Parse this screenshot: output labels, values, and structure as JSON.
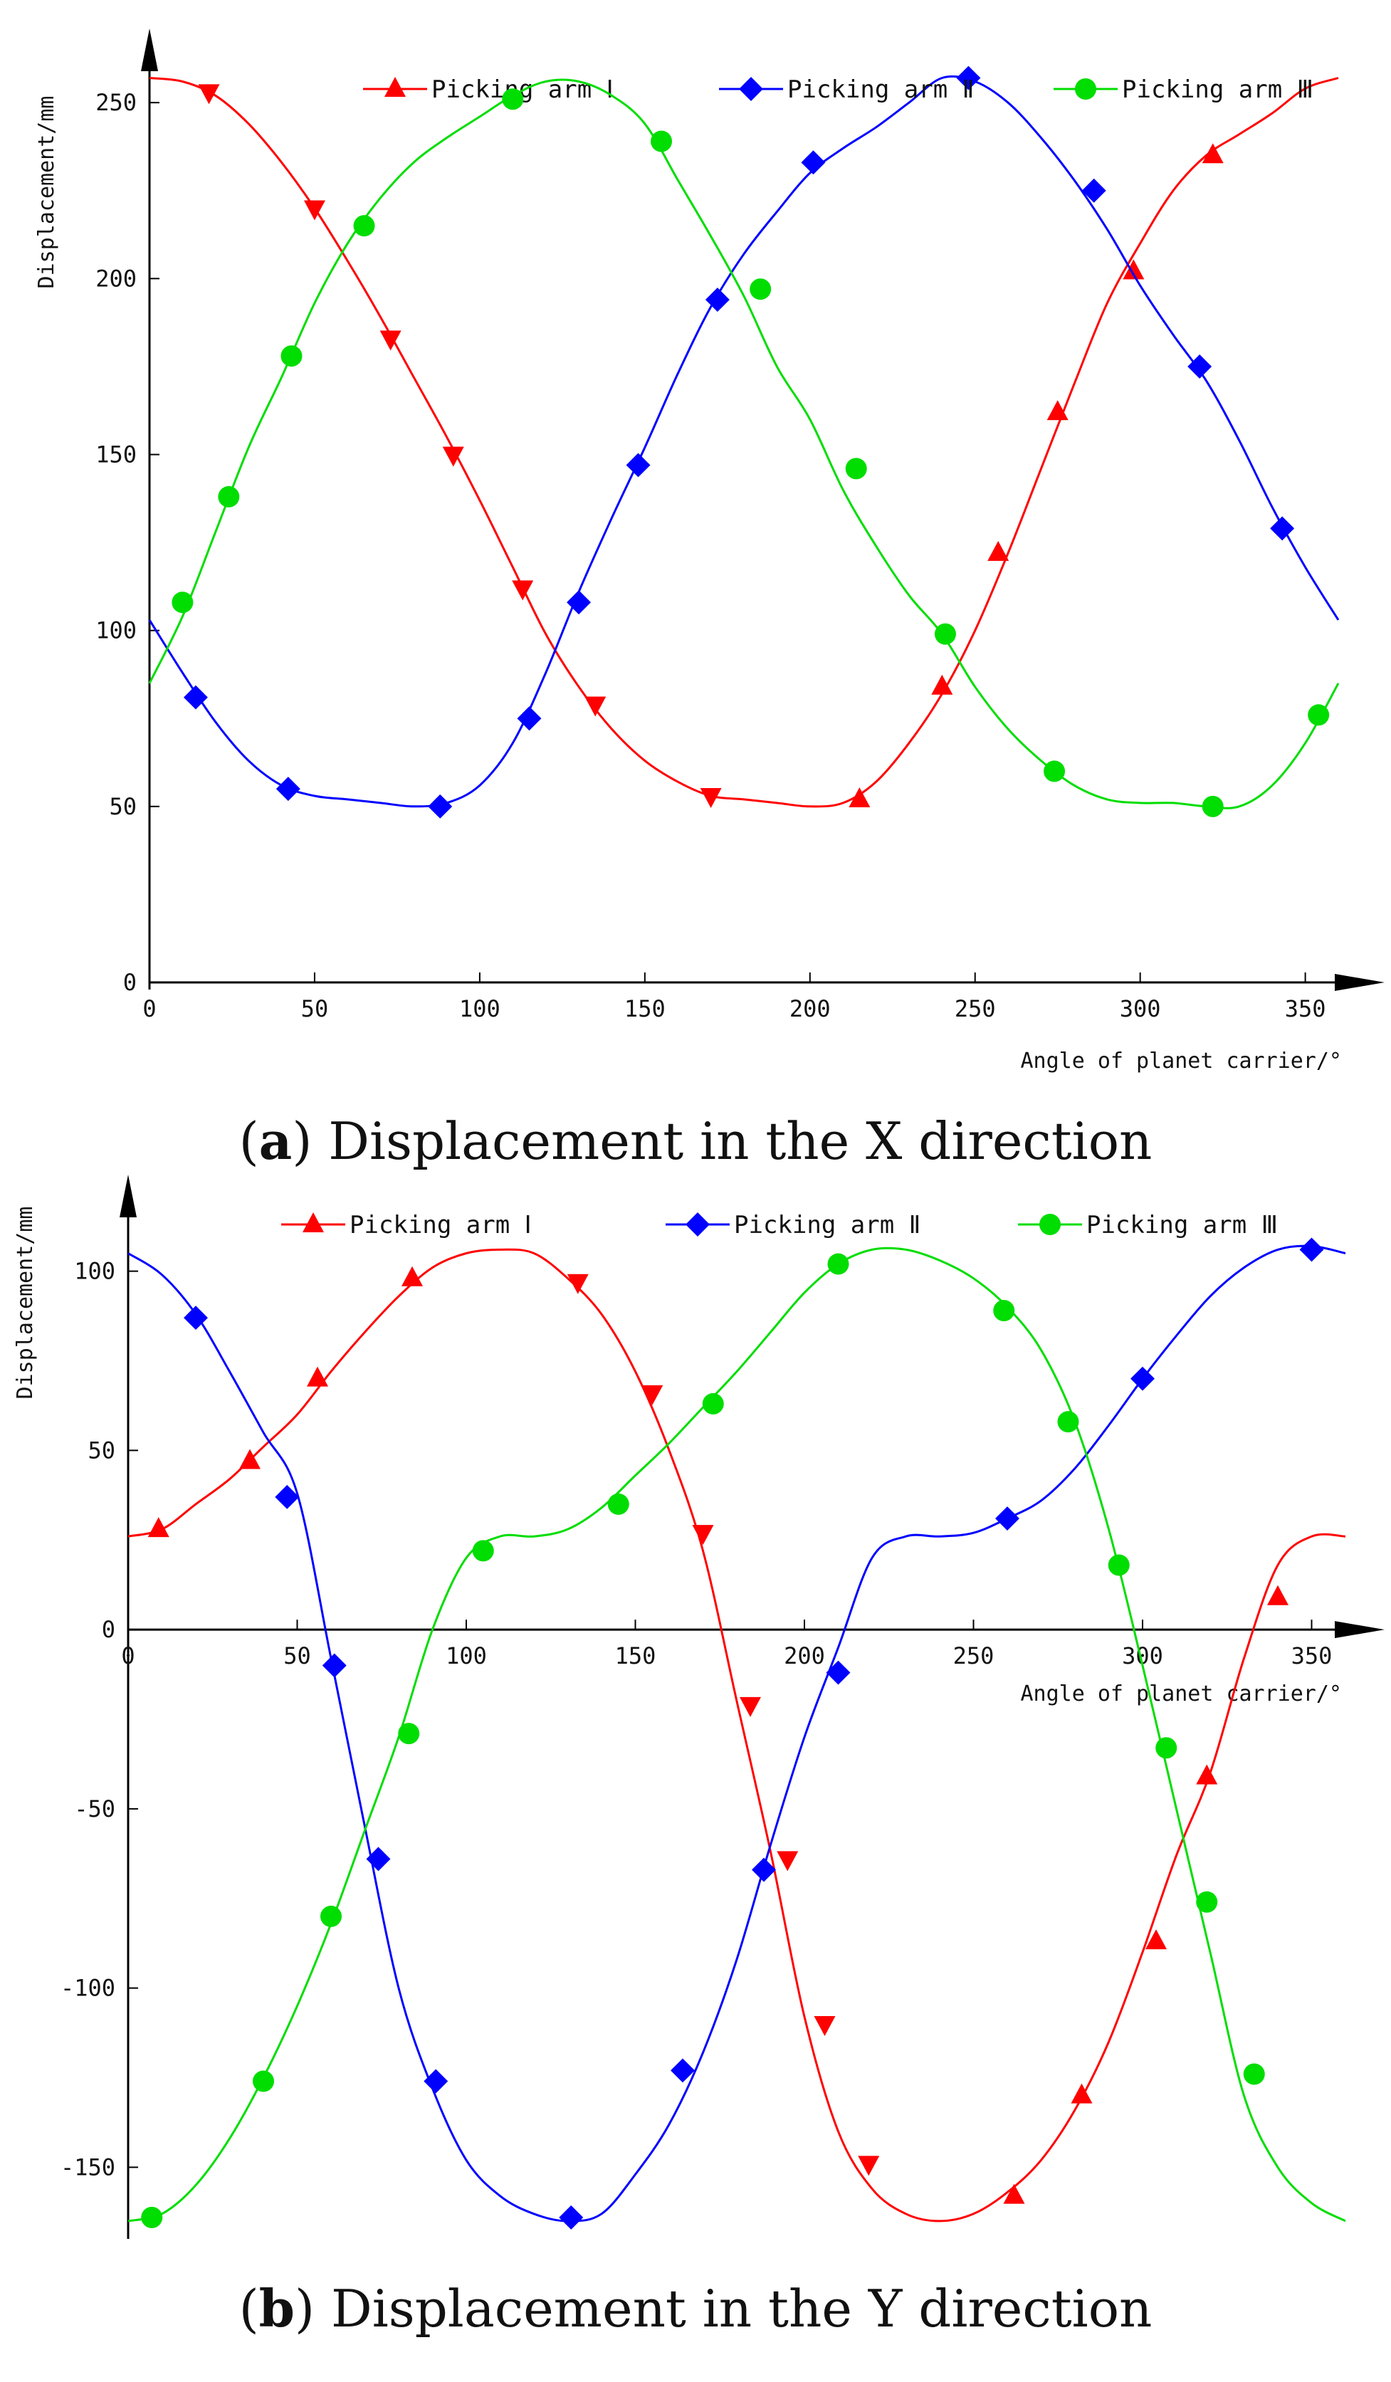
{
  "chart_data": [
    {
      "type": "line",
      "panel": "a",
      "caption_letter": "a",
      "caption_text": "Displacement in the X direction",
      "xlabel": "Angle of planet carrier/°",
      "ylabel": "Displacement/mm",
      "xlim": [
        0,
        360
      ],
      "ylim": [
        0,
        265
      ],
      "xticks": [
        0,
        50,
        100,
        150,
        200,
        250,
        300,
        350
      ],
      "yticks": [
        0,
        50,
        100,
        150,
        200,
        250
      ],
      "grid": false,
      "legend_position": "top",
      "series": [
        {
          "name": "Picking arm Ⅰ",
          "color": "#ff0000",
          "marker": "triangle",
          "x": [
            0,
            10,
            20,
            30,
            40,
            50,
            60,
            70,
            80,
            90,
            100,
            110,
            120,
            130,
            140,
            150,
            160,
            170,
            180,
            190,
            200,
            210,
            220,
            230,
            240,
            250,
            260,
            270,
            280,
            290,
            300,
            310,
            320,
            330,
            340,
            350,
            360
          ],
          "values": [
            257,
            256,
            252,
            244,
            233,
            220,
            205,
            189,
            172,
            155,
            137,
            118,
            99,
            84,
            72,
            63,
            57,
            53,
            52,
            51,
            50,
            51,
            57,
            68,
            82,
            100,
            122,
            146,
            170,
            193,
            210,
            225,
            235,
            241,
            247,
            254,
            257
          ],
          "marker_points": [
            [
              18,
              253
            ],
            [
              50,
              220
            ],
            [
              73,
              183
            ],
            [
              92,
              150
            ],
            [
              113,
              112
            ],
            [
              135,
              79
            ],
            [
              170,
              53
            ],
            [
              215,
              52
            ],
            [
              240,
              84
            ],
            [
              257,
              122
            ],
            [
              275,
              162
            ],
            [
              298,
              202
            ],
            [
              322,
              235
            ]
          ]
        },
        {
          "name": "Picking arm Ⅱ",
          "color": "#0000ff",
          "marker": "diamond",
          "x": [
            0,
            10,
            20,
            30,
            40,
            50,
            60,
            70,
            80,
            90,
            100,
            110,
            120,
            130,
            140,
            150,
            160,
            170,
            180,
            190,
            200,
            210,
            220,
            230,
            240,
            250,
            260,
            270,
            280,
            290,
            300,
            310,
            320,
            330,
            340,
            350,
            360
          ],
          "values": [
            103,
            88,
            74,
            63,
            56,
            53,
            52,
            51,
            50,
            51,
            56,
            68,
            88,
            111,
            132,
            152,
            173,
            192,
            207,
            219,
            230,
            237,
            243,
            250,
            257,
            256,
            250,
            240,
            228,
            214,
            198,
            184,
            171,
            154,
            135,
            118,
            103
          ],
          "marker_points": [
            [
              14,
              81
            ],
            [
              42,
              55
            ],
            [
              88,
              50
            ],
            [
              115,
              75
            ],
            [
              130,
              108
            ],
            [
              148,
              147
            ],
            [
              172,
              194
            ],
            [
              201,
              233
            ],
            [
              248,
              257
            ],
            [
              286,
              225
            ],
            [
              318,
              175
            ],
            [
              343,
              129
            ]
          ]
        },
        {
          "name": "Picking arm Ⅲ",
          "color": "#00dd00",
          "marker": "circle",
          "x": [
            0,
            10,
            20,
            30,
            40,
            50,
            60,
            70,
            80,
            90,
            100,
            110,
            120,
            130,
            140,
            150,
            160,
            170,
            180,
            190,
            200,
            210,
            220,
            230,
            240,
            250,
            260,
            270,
            280,
            290,
            300,
            310,
            320,
            330,
            340,
            350,
            360
          ],
          "values": [
            85,
            104,
            128,
            152,
            172,
            193,
            210,
            223,
            233,
            240,
            246,
            252,
            256,
            256,
            252,
            244,
            228,
            212,
            195,
            175,
            160,
            140,
            124,
            110,
            99,
            84,
            72,
            63,
            56,
            52,
            51,
            51,
            50,
            50,
            56,
            68,
            85
          ],
          "marker_points": [
            [
              10,
              108
            ],
            [
              24,
              138
            ],
            [
              43,
              178
            ],
            [
              65,
              215
            ],
            [
              110,
              251
            ],
            [
              155,
              239
            ],
            [
              185,
              197
            ],
            [
              214,
              146
            ],
            [
              241,
              99
            ],
            [
              274,
              60
            ],
            [
              322,
              50
            ],
            [
              354,
              76
            ]
          ]
        }
      ]
    },
    {
      "type": "line",
      "panel": "b",
      "caption_letter": "b",
      "caption_text": "Displacement in the Y direction",
      "xlabel": "Angle of planet carrier/°",
      "ylabel": "Displacement/mm",
      "xlim": [
        0,
        360
      ],
      "ylim": [
        -168,
        118
      ],
      "xticks": [
        0,
        50,
        100,
        150,
        200,
        250,
        300,
        350
      ],
      "yticks": [
        -150,
        -100,
        -50,
        0,
        50,
        100
      ],
      "grid": false,
      "legend_position": "top",
      "series": [
        {
          "name": "Picking arm Ⅰ",
          "color": "#ff0000",
          "marker": "triangle",
          "x": [
            0,
            10,
            20,
            30,
            40,
            50,
            60,
            70,
            80,
            90,
            100,
            110,
            120,
            130,
            140,
            150,
            160,
            170,
            180,
            190,
            200,
            210,
            220,
            230,
            240,
            250,
            260,
            270,
            280,
            290,
            300,
            310,
            320,
            330,
            340,
            350,
            360
          ],
          "values": [
            26,
            28,
            35,
            42,
            51,
            60,
            72,
            83,
            93,
            101,
            105,
            106,
            105,
            98,
            88,
            72,
            50,
            22,
            -20,
            -62,
            -108,
            -140,
            -156,
            -163,
            -165,
            -163,
            -157,
            -148,
            -134,
            -115,
            -90,
            -63,
            -40,
            -8,
            18,
            26,
            26
          ],
          "marker_points": [
            [
              9,
              28
            ],
            [
              36,
              47
            ],
            [
              56,
              70
            ],
            [
              84,
              98
            ],
            [
              133,
              97
            ],
            [
              155,
              66
            ],
            [
              170,
              27
            ],
            [
              184,
              -21
            ],
            [
              195,
              -64
            ],
            [
              206,
              -110
            ],
            [
              219,
              -149
            ],
            [
              262,
              -158
            ],
            [
              282,
              -130
            ],
            [
              304,
              -87
            ],
            [
              319,
              -41
            ],
            [
              340,
              9
            ]
          ]
        },
        {
          "name": "Picking arm Ⅱ",
          "color": "#0000ff",
          "marker": "diamond",
          "x": [
            0,
            10,
            20,
            30,
            40,
            50,
            60,
            70,
            80,
            90,
            100,
            110,
            120,
            130,
            140,
            150,
            160,
            170,
            180,
            190,
            200,
            210,
            220,
            230,
            240,
            250,
            260,
            270,
            280,
            290,
            300,
            310,
            320,
            330,
            340,
            350,
            360
          ],
          "values": [
            105,
            99,
            88,
            72,
            55,
            38,
            -8,
            -55,
            -100,
            -128,
            -148,
            -158,
            -163,
            -165,
            -163,
            -152,
            -138,
            -118,
            -92,
            -60,
            -30,
            -5,
            20,
            26,
            26,
            27,
            31,
            36,
            45,
            57,
            70,
            82,
            93,
            101,
            106,
            107,
            105
          ],
          "marker_points": [
            [
              20,
              87
            ],
            [
              47,
              37
            ],
            [
              61,
              -10
            ],
            [
              74,
              -64
            ],
            [
              91,
              -126
            ],
            [
              131,
              -164
            ],
            [
              164,
              -123
            ],
            [
              188,
              -67
            ],
            [
              210,
              -12
            ],
            [
              260,
              31
            ],
            [
              300,
              70
            ],
            [
              350,
              106
            ]
          ]
        },
        {
          "name": "Picking arm Ⅲ",
          "color": "#00dd00",
          "marker": "circle",
          "x": [
            0,
            10,
            20,
            30,
            40,
            50,
            60,
            70,
            80,
            90,
            100,
            110,
            120,
            130,
            140,
            150,
            160,
            170,
            180,
            190,
            200,
            210,
            220,
            230,
            240,
            250,
            260,
            270,
            280,
            290,
            300,
            310,
            320,
            330,
            340,
            350,
            360
          ],
          "values": [
            -165,
            -163,
            -155,
            -142,
            -125,
            -105,
            -82,
            -56,
            -30,
            0,
            20,
            26,
            26,
            28,
            34,
            43,
            52,
            62,
            72,
            83,
            94,
            102,
            106,
            106,
            103,
            98,
            90,
            78,
            58,
            28,
            -10,
            -50,
            -90,
            -130,
            -150,
            -160,
            -165
          ],
          "marker_points": [
            [
              7,
              -164
            ],
            [
              40,
              -126
            ],
            [
              60,
              -80
            ],
            [
              83,
              -29
            ],
            [
              105,
              22
            ],
            [
              145,
              35
            ],
            [
              173,
              63
            ],
            [
              210,
              102
            ],
            [
              259,
              89
            ],
            [
              278,
              58
            ],
            [
              293,
              18
            ],
            [
              307,
              -33
            ],
            [
              319,
              -76
            ],
            [
              333,
              -124
            ]
          ]
        }
      ]
    }
  ]
}
